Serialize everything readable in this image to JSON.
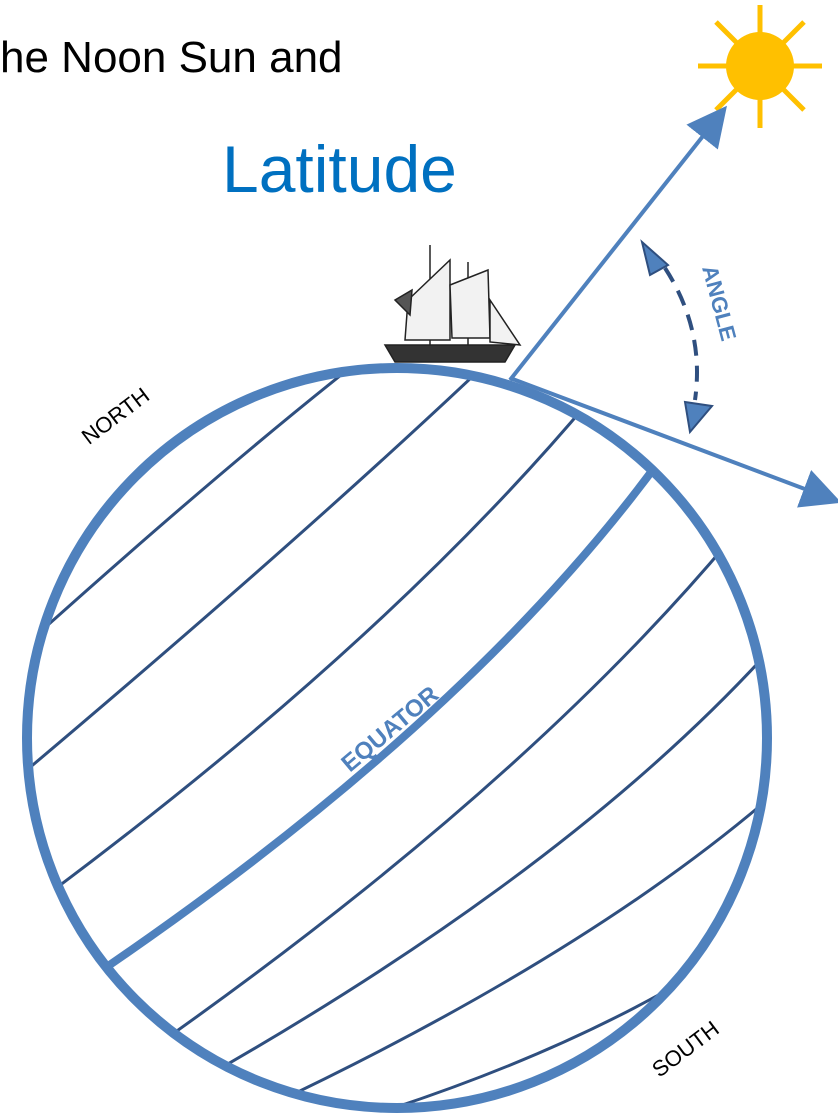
{
  "title": {
    "line1": "he Noon Sun and",
    "line2": "Latitude"
  },
  "labels": {
    "north": "NORTH",
    "south": "SOUTH",
    "equator": "EQUATOR",
    "angle": "ANGLE"
  }
}
